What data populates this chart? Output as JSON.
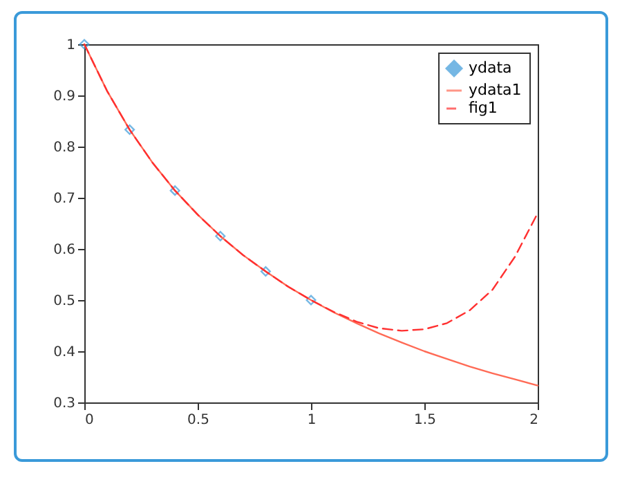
{
  "chart_data": {
    "type": "line",
    "xlim": [
      0,
      2
    ],
    "xticks": [
      0,
      0.5,
      1,
      1.5,
      2
    ],
    "ylim": [
      0.3,
      1
    ],
    "yticks": [
      0.3,
      0.4,
      0.5,
      0.6,
      0.7,
      0.8,
      0.9,
      1
    ],
    "grid": false,
    "legend": "top right",
    "series": [
      {
        "name": "ydata",
        "type": "scatter",
        "marker": "diamond",
        "color": "#3b9ad9",
        "x": [
          0,
          0.2,
          0.4,
          0.6,
          0.8,
          1
        ],
        "values": [
          1,
          0.833,
          0.714,
          0.625,
          0.556,
          0.5
        ]
      },
      {
        "name": "ydata1",
        "type": "line",
        "line_style": "solid",
        "color": "#ff6a55",
        "x": [
          0,
          0.1,
          0.2,
          0.3,
          0.4,
          0.5,
          0.6,
          0.7,
          0.8,
          0.9,
          1,
          1.1,
          1.2,
          1.3,
          1.4,
          1.5,
          1.6,
          1.7,
          1.8,
          1.9,
          2
        ],
        "values": [
          1,
          0.909,
          0.833,
          0.769,
          0.714,
          0.667,
          0.625,
          0.588,
          0.556,
          0.526,
          0.5,
          0.476,
          0.455,
          0.435,
          0.417,
          0.4,
          0.385,
          0.37,
          0.357,
          0.345,
          0.333
        ]
      },
      {
        "name": "fig1",
        "type": "line",
        "line_style": "dashed",
        "color": "#ff3030",
        "x": [
          0,
          0.1,
          0.2,
          0.3,
          0.4,
          0.5,
          0.6,
          0.7,
          0.8,
          0.9,
          1,
          1.1,
          1.2,
          1.3,
          1.4,
          1.5,
          1.6,
          1.7,
          1.8,
          1.9,
          2
        ],
        "values": [
          1,
          0.909,
          0.833,
          0.769,
          0.714,
          0.667,
          0.625,
          0.588,
          0.556,
          0.526,
          0.5,
          0.477,
          0.458,
          0.445,
          0.44,
          0.443,
          0.455,
          0.48,
          0.52,
          0.585,
          0.67
        ]
      }
    ]
  }
}
